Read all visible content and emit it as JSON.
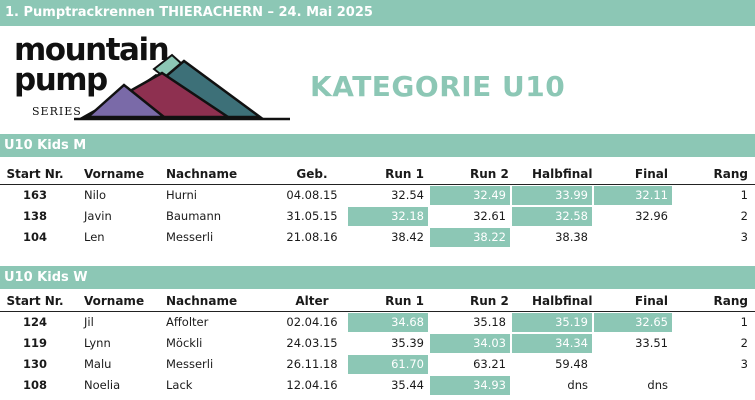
{
  "header": {
    "title": "1. Pumptrackrennen THIERACHERN – 24. Mai 2025"
  },
  "logo": {
    "line1": "mountain",
    "line2": "pump",
    "series": "SERIES"
  },
  "category_title": "KATEGORIE U10",
  "colors": {
    "accent": "#8cc7b5",
    "text": "#1a1a1a",
    "mountain_purple": "#7a6aa8",
    "mountain_red": "#8e3050",
    "mountain_teal": "#3d7078",
    "mountain_mint": "#8cc7b5"
  },
  "sections": [
    {
      "title": "U10 Kids M",
      "columns": [
        "Start Nr.",
        "Vorname",
        "Nachname",
        "Geb.",
        "Run 1",
        "Run 2",
        "Halbfinal",
        "Final",
        "Rang"
      ],
      "rows": [
        {
          "start": "163",
          "vorname": "Nilo",
          "nachname": "Hurni",
          "date": "04.08.15",
          "run1": "32.54",
          "run2": "32.49",
          "halbfinal": "33.99",
          "final": "32.11",
          "rang": "1",
          "hl": [
            "run2",
            "halbfinal",
            "final"
          ]
        },
        {
          "start": "138",
          "vorname": "Javin",
          "nachname": "Baumann",
          "date": "31.05.15",
          "run1": "32.18",
          "run2": "32.61",
          "halbfinal": "32.58",
          "final": "32.96",
          "rang": "2",
          "hl": [
            "run1",
            "halbfinal"
          ]
        },
        {
          "start": "104",
          "vorname": "Len",
          "nachname": "Messerli",
          "date": "21.08.16",
          "run1": "38.42",
          "run2": "38.22",
          "halbfinal": "38.38",
          "final": "",
          "rang": "3",
          "hl": [
            "run2"
          ]
        }
      ]
    },
    {
      "title": "U10 Kids W",
      "columns": [
        "Start Nr.",
        "Vorname",
        "Nachname",
        "Alter",
        "Run 1",
        "Run 2",
        "Halbfinal",
        "Final",
        "Rang"
      ],
      "rows": [
        {
          "start": "124",
          "vorname": "Jil",
          "nachname": "Affolter",
          "date": "02.04.16",
          "run1": "34.68",
          "run2": "35.18",
          "halbfinal": "35.19",
          "final": "32.65",
          "rang": "1",
          "hl": [
            "run1",
            "halbfinal",
            "final"
          ]
        },
        {
          "start": "119",
          "vorname": "Lynn",
          "nachname": "Möckli",
          "date": "24.03.15",
          "run1": "35.39",
          "run2": "34.03",
          "halbfinal": "34.34",
          "final": "33.51",
          "rang": "2",
          "hl": [
            "run2",
            "halbfinal"
          ]
        },
        {
          "start": "130",
          "vorname": "Malu",
          "nachname": "Messerli",
          "date": "26.11.18",
          "run1": "61.70",
          "run2": "63.21",
          "halbfinal": "59.48",
          "final": "",
          "rang": "3",
          "hl": [
            "run1"
          ]
        },
        {
          "start": "108",
          "vorname": "Noelia",
          "nachname": "Lack",
          "date": "12.04.16",
          "run1": "35.44",
          "run2": "34.93",
          "halbfinal": "dns",
          "final": "dns",
          "rang": "",
          "hl": [
            "run2"
          ]
        }
      ]
    }
  ]
}
